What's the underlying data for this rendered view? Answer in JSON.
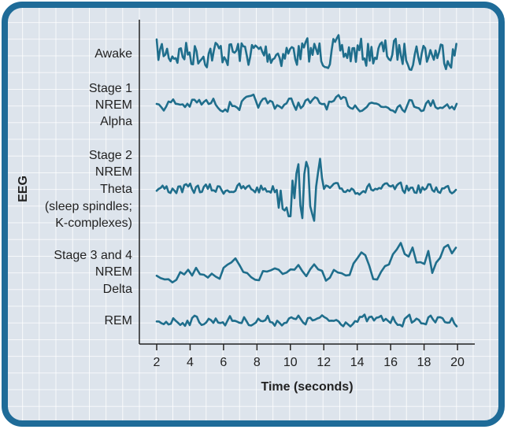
{
  "y_axis_label": "EEG",
  "x_axis": {
    "label": "Time (seconds)",
    "ticks": [
      2,
      4,
      6,
      8,
      10,
      12,
      14,
      16,
      18,
      20
    ]
  },
  "traces": [
    {
      "label": [
        "Awake"
      ]
    },
    {
      "label": [
        "Stage 1",
        "NREM",
        "Alpha"
      ]
    },
    {
      "label": [
        "Stage 2",
        "NREM",
        "Theta",
        "(sleep spindles;",
        "K-complexes)"
      ]
    },
    {
      "label": [
        "Stage 3 and 4",
        "NREM",
        "Delta"
      ]
    },
    {
      "label": [
        "REM"
      ]
    }
  ]
}
